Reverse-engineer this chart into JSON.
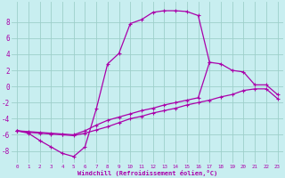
{
  "xlabel": "Windchill (Refroidissement éolien,°C)",
  "bg_color": "#c8eef0",
  "grid_color": "#9dcfca",
  "line_color": "#aa00aa",
  "xlim": [
    -0.5,
    23.5
  ],
  "ylim": [
    -9.5,
    10.5
  ],
  "yticks": [
    -8,
    -6,
    -4,
    -2,
    0,
    2,
    4,
    6,
    8
  ],
  "xticks": [
    0,
    1,
    2,
    3,
    4,
    5,
    6,
    7,
    8,
    9,
    10,
    11,
    12,
    13,
    14,
    15,
    16,
    17,
    18,
    19,
    20,
    21,
    22,
    23
  ],
  "line1_x": [
    0,
    1,
    2,
    3,
    4,
    5,
    6,
    7,
    8,
    9,
    10,
    11,
    12,
    13,
    14,
    15,
    16,
    17
  ],
  "line1_y": [
    -5.5,
    -5.8,
    -6.7,
    -7.5,
    -8.3,
    -8.7,
    -7.5,
    -2.8,
    2.8,
    4.1,
    7.8,
    8.3,
    9.2,
    9.4,
    9.4,
    9.3,
    8.8,
    3.0
  ],
  "line2_x": [
    0,
    1,
    2,
    3,
    4,
    5,
    6,
    7,
    8,
    9,
    10,
    11,
    12,
    13,
    14,
    15,
    16,
    17,
    18,
    19,
    20,
    21,
    22,
    23
  ],
  "line2_y": [
    -5.5,
    -5.6,
    -5.7,
    -5.8,
    -5.9,
    -6.0,
    -5.5,
    -4.8,
    -4.2,
    -3.8,
    -3.4,
    -3.0,
    -2.7,
    -2.3,
    -2.0,
    -1.7,
    -1.4,
    3.0,
    2.8,
    2.0,
    1.8,
    0.2,
    0.2,
    -1.0
  ],
  "line3_x": [
    0,
    1,
    2,
    3,
    4,
    5,
    6,
    7,
    8,
    9,
    10,
    11,
    12,
    13,
    14,
    15,
    16,
    17,
    18,
    19,
    20,
    21,
    22,
    23
  ],
  "line3_y": [
    -5.5,
    -5.7,
    -5.8,
    -5.9,
    -6.0,
    -6.1,
    -5.8,
    -5.4,
    -5.0,
    -4.5,
    -4.0,
    -3.7,
    -3.3,
    -3.0,
    -2.7,
    -2.3,
    -2.0,
    -1.7,
    -1.3,
    -1.0,
    -0.5,
    -0.3,
    -0.3,
    -1.5
  ]
}
